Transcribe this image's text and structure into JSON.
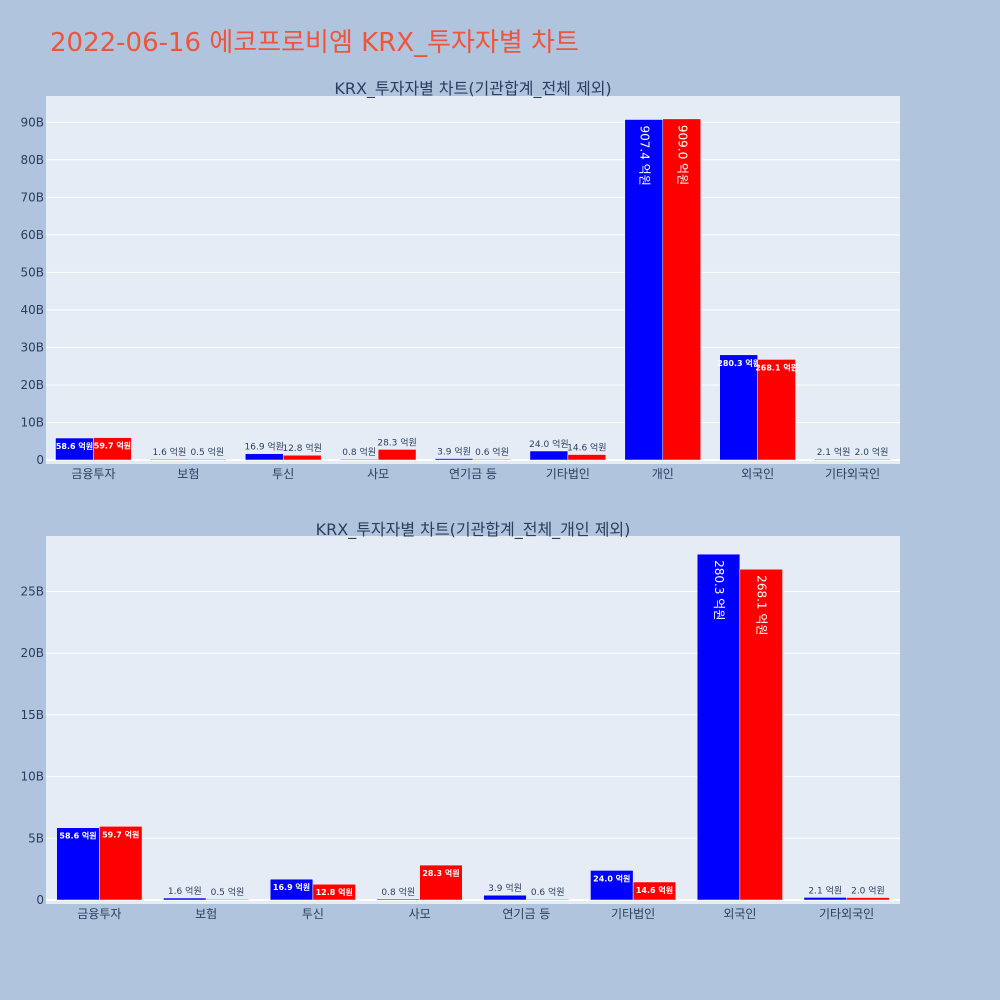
{
  "page_title": "2022-06-16 에코프로비엠 KRX_투자자별 차트",
  "colors": {
    "buy": "#0000ff",
    "sell": "#ff0000",
    "title": "#ef553b",
    "plot_bg": "#e5ecf6",
    "paper_bg": "#b0c4de"
  },
  "chart_data": [
    {
      "type": "bar",
      "title": "KRX_투자자별 차트(기관합계_전체 제외)",
      "categories": [
        "금융투자",
        "보험",
        "투신",
        "사모",
        "연기금 등",
        "기타법인",
        "개인",
        "외국인",
        "기타외국인"
      ],
      "series": [
        {
          "values": [
            5.86,
            0.16,
            1.69,
            0.08,
            0.39,
            2.4,
            90.74,
            28.03,
            0.21
          ],
          "labels": [
            "58.6 억원",
            "1.6 억원",
            "16.9 억원",
            "0.8 억원",
            "3.9 억원",
            "24.0 억원",
            "907.4 억원",
            "280.3 억원",
            "2.1 억원"
          ]
        },
        {
          "values": [
            5.97,
            0.05,
            1.28,
            2.83,
            0.06,
            1.46,
            90.9,
            26.81,
            0.2
          ],
          "labels": [
            "59.7 억원",
            "0.5 억원",
            "12.8 억원",
            "28.3 억원",
            "0.6 억원",
            "14.6 억원",
            "909.0 억원",
            "268.1 억원",
            "2.0 억원"
          ]
        }
      ],
      "ylim": [
        0,
        97
      ],
      "yticks": [
        0,
        10,
        20,
        30,
        40,
        50,
        60,
        70,
        80,
        90
      ],
      "ytick_labels": [
        "0",
        "10B",
        "20B",
        "30B",
        "40B",
        "50B",
        "60B",
        "70B",
        "80B",
        "90B"
      ],
      "grid": true
    },
    {
      "type": "bar",
      "title": "KRX_투자자별 차트(기관합계_전체_개인 제외)",
      "categories": [
        "금융투자",
        "보험",
        "투신",
        "사모",
        "연기금 등",
        "기타법인",
        "외국인",
        "기타외국인"
      ],
      "series": [
        {
          "values": [
            5.86,
            0.16,
            1.69,
            0.08,
            0.39,
            2.4,
            28.03,
            0.21
          ],
          "labels": [
            "58.6 억원",
            "1.6 억원",
            "16.9 억원",
            "0.8 억원",
            "3.9 억원",
            "24.0 억원",
            "280.3 억원",
            "2.1 억원"
          ]
        },
        {
          "values": [
            5.97,
            0.05,
            1.28,
            2.83,
            0.06,
            1.46,
            26.81,
            0.2
          ],
          "labels": [
            "59.7 억원",
            "0.5 억원",
            "12.8 억원",
            "28.3 억원",
            "0.6 억원",
            "14.6 억원",
            "268.1 억원",
            "2.0 억원"
          ]
        }
      ],
      "ylim": [
        0,
        29.5
      ],
      "yticks": [
        0,
        5,
        10,
        15,
        20,
        25
      ],
      "ytick_labels": [
        "0",
        "5B",
        "10B",
        "15B",
        "20B",
        "25B"
      ],
      "grid": true
    }
  ]
}
